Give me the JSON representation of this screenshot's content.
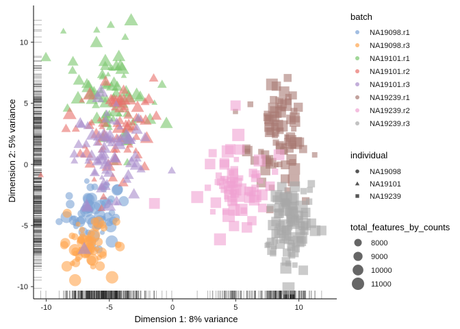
{
  "chart_data": {
    "type": "scatter",
    "xlabel": "Dimension 1: 8% variance",
    "ylabel": "Dimension 2: 5% variance",
    "xlim": [
      -11,
      13
    ],
    "ylim": [
      -11,
      13
    ],
    "xticks": [
      -10,
      -5,
      0,
      5,
      10
    ],
    "yticks": [
      -10,
      -5,
      0,
      5,
      10
    ],
    "tick_labels_x": [
      "-10",
      "-5",
      "0",
      "5",
      "10"
    ],
    "tick_labels_y": [
      "-10",
      "-5",
      "0",
      "5",
      "10"
    ],
    "rug": true,
    "legends": {
      "batch": {
        "title": "batch",
        "entries": [
          {
            "label": "NA19098.r1",
            "color": "#7BA3D6"
          },
          {
            "label": "NA19098.r3",
            "color": "#FFA54F"
          },
          {
            "label": "NA19101.r1",
            "color": "#79C66C"
          },
          {
            "label": "NA19101.r2",
            "color": "#E8706B"
          },
          {
            "label": "NA19101.r3",
            "color": "#A98CCB"
          },
          {
            "label": "NA19239.r1",
            "color": "#A87A73"
          },
          {
            "label": "NA19239.r2",
            "color": "#F0A2D2"
          },
          {
            "label": "NA19239.r3",
            "color": "#A8A8A8"
          }
        ]
      },
      "individual": {
        "title": "individual",
        "entries": [
          {
            "label": "NA19098",
            "shape": "circle"
          },
          {
            "label": "NA19101",
            "shape": "triangle"
          },
          {
            "label": "NA19239",
            "shape": "square"
          }
        ]
      },
      "size": {
        "title": "total_features_by_counts",
        "entries": [
          {
            "label": "8000",
            "value": 8000
          },
          {
            "label": "9000",
            "value": 9000
          },
          {
            "label": "10000",
            "value": 10000
          },
          {
            "label": "11000",
            "value": 11000
          }
        ]
      }
    },
    "series": [
      {
        "name": "NA19098.r1",
        "individual": "NA19098",
        "center": [
          -6.3,
          -4.0
        ],
        "spread": [
          1.3,
          1.3
        ],
        "n": 55
      },
      {
        "name": "NA19098.r3",
        "individual": "NA19098",
        "center": [
          -6.8,
          -6.8
        ],
        "spread": [
          1.0,
          1.1
        ],
        "n": 55
      },
      {
        "name": "NA19101.r1",
        "individual": "NA19101",
        "center": [
          -4.8,
          6.0
        ],
        "spread": [
          1.5,
          2.4
        ],
        "n": 75
      },
      {
        "name": "NA19101.r2",
        "individual": "NA19101",
        "center": [
          -5.0,
          3.0
        ],
        "spread": [
          1.6,
          2.5
        ],
        "n": 70
      },
      {
        "name": "NA19101.r3",
        "individual": "NA19101",
        "center": [
          -5.3,
          0.5
        ],
        "spread": [
          1.6,
          2.6
        ],
        "n": 70
      },
      {
        "name": "NA19239.r1",
        "individual": "NA19239",
        "center": [
          8.4,
          2.3
        ],
        "spread": [
          1.2,
          2.0
        ],
        "n": 80
      },
      {
        "name": "NA19239.r2",
        "individual": "NA19239",
        "center": [
          4.6,
          -1.5
        ],
        "spread": [
          1.5,
          2.0
        ],
        "n": 70
      },
      {
        "name": "NA19239.r3",
        "individual": "NA19239",
        "center": [
          9.2,
          -4.9
        ],
        "spread": [
          1.0,
          1.8
        ],
        "n": 90
      }
    ]
  }
}
